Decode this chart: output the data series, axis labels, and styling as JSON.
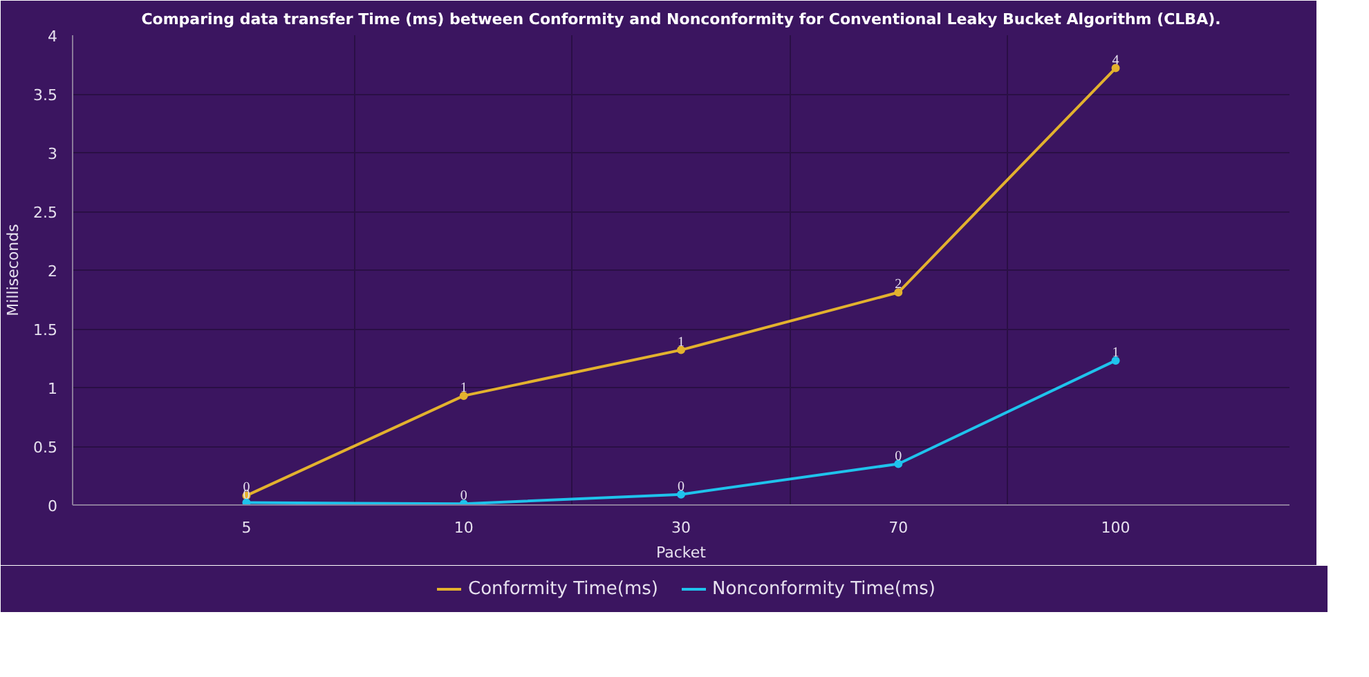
{
  "chart_data": {
    "type": "line",
    "title": "Comparing data transfer Time (ms) between Conformity and Nonconformity for Conventional Leaky Bucket Algorithm (CLBA).",
    "xlabel": "Packet",
    "ylabel": "Milliseconds",
    "categories": [
      "5",
      "10",
      "30",
      "70",
      "100"
    ],
    "series": [
      {
        "name": "Conformity Time(ms)",
        "color": "#e3b22e",
        "values": [
          0.08,
          0.93,
          1.32,
          1.81,
          3.72
        ],
        "value_labels": [
          "0",
          "1",
          "1",
          "2",
          "4"
        ]
      },
      {
        "name": "Nonconformity Time(ms)",
        "color": "#1fc3ec",
        "values": [
          0.02,
          0.01,
          0.09,
          0.35,
          1.23
        ],
        "value_labels": [
          "0",
          "0",
          "0",
          "0",
          "1"
        ]
      }
    ],
    "ylim": [
      0,
      4
    ],
    "yticks": [
      0,
      0.5,
      1,
      1.5,
      2,
      2.5,
      3,
      3.5,
      4
    ],
    "grid": true,
    "legend": "bottom",
    "marker": "circle",
    "line_style": "solid"
  }
}
